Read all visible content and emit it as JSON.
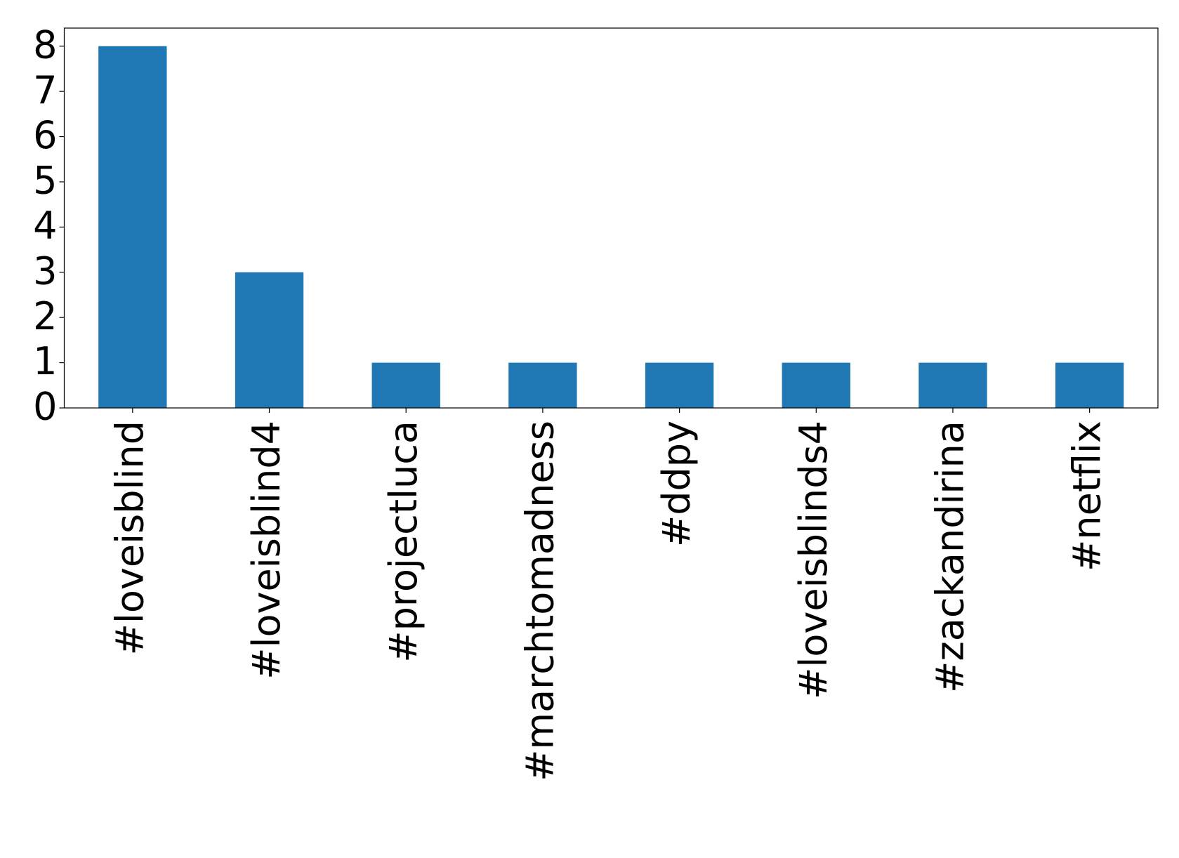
{
  "chart_data": {
    "type": "bar",
    "categories": [
      "#loveisblind",
      "#loveisblind4",
      "#projectluca",
      "#marchtomadness",
      "#ddpy",
      "#loveisblinds4",
      "#zackandirina",
      "#netflix"
    ],
    "values": [
      8,
      3,
      1,
      1,
      1,
      1,
      1,
      1
    ],
    "color": "#1f77b4",
    "ylim": [
      0,
      8.4
    ],
    "yticks": [
      0,
      1,
      2,
      3,
      4,
      5,
      6,
      7,
      8
    ],
    "grid": false
  }
}
